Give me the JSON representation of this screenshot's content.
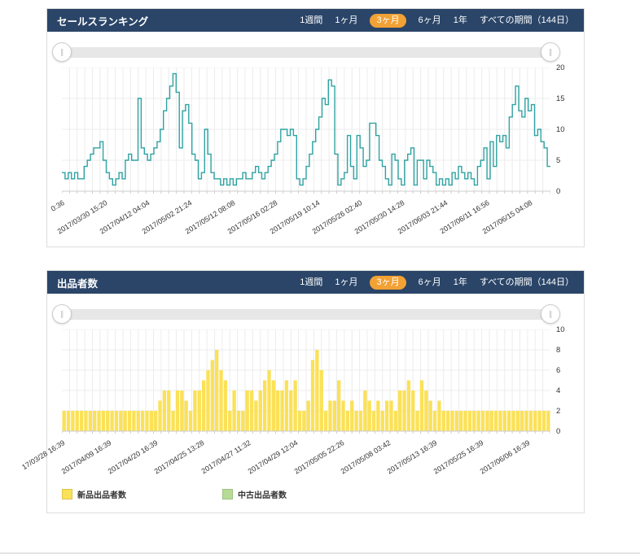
{
  "colors": {
    "header_navy": "#2a4568",
    "accent_orange": "#f2a134",
    "line_teal": "#2fa2a2",
    "bar_yellow": "#fbe158",
    "legend_green": "#b6db94",
    "grid": "#ececec",
    "axis": "#cccccc",
    "slider_track": "#e7e7e7"
  },
  "icons": {
    "slider_handle": "∥"
  },
  "panels": [
    {
      "title": "セールスランキング",
      "period_buttons": [
        "1週間",
        "1ヶ月",
        "3ヶ月",
        "6ヶ月",
        "1年",
        "すべての期間（144日）"
      ],
      "active_period": "3ヶ月"
    },
    {
      "title": "出品者数",
      "period_buttons": [
        "1週間",
        "1ヶ月",
        "3ヶ月",
        "6ヶ月",
        "1年",
        "すべての期間（144日）"
      ],
      "active_period": "3ヶ月"
    }
  ],
  "chart_data": [
    {
      "type": "line",
      "line_style": "step",
      "title": "セールスランキング",
      "color": "#2fa2a2",
      "ylim": [
        0,
        20
      ],
      "y_ticks": [
        0,
        5,
        10,
        15,
        20
      ],
      "grid": true,
      "x_tick_labels": [
        "0:36",
        "2017/03/30 15:20",
        "2017/04/12 04:04",
        "2017/05/02 21:24",
        "2017/05/12 08:08",
        "2017/05/16 02:28",
        "2017/05/19 10:14",
        "2017/05/26 02:40",
        "2017/05/30 14:28",
        "2017/06/03 21:44",
        "2017/06/11 16:56",
        "2017/06/15 04:08"
      ],
      "values": [
        3,
        2,
        3,
        2,
        3,
        2,
        2,
        4,
        5,
        6,
        7,
        7,
        8,
        5,
        3,
        2,
        1,
        2,
        3,
        2,
        5,
        6,
        5,
        5,
        15,
        7,
        6,
        5,
        6,
        7,
        8,
        10,
        13,
        15,
        17,
        19,
        16,
        7,
        13,
        14,
        11,
        6,
        5,
        2,
        3,
        10,
        6,
        3,
        2,
        2,
        1,
        2,
        1,
        2,
        1,
        2,
        2,
        3,
        2,
        2,
        3,
        4,
        3,
        2,
        3,
        4,
        5,
        6,
        8,
        10,
        10,
        9,
        10,
        9,
        2,
        1,
        2,
        4,
        6,
        8,
        10,
        12,
        15,
        14,
        18,
        17,
        6,
        1,
        2,
        3,
        9,
        4,
        2,
        9,
        7,
        4,
        5,
        11,
        11,
        9,
        5,
        4,
        2,
        1,
        6,
        5,
        2,
        1,
        5,
        6,
        7,
        1,
        5,
        5,
        2,
        5,
        4,
        3,
        1,
        2,
        1,
        2,
        1,
        3,
        2,
        4,
        3,
        2,
        3,
        2,
        1,
        4,
        5,
        7,
        2,
        8,
        4,
        9,
        8,
        9,
        7,
        12,
        14,
        17,
        13,
        12,
        15,
        13,
        14,
        9,
        10,
        8,
        7,
        4
      ]
    },
    {
      "type": "bar",
      "title": "出品者数",
      "ylim": [
        0,
        10
      ],
      "y_ticks": [
        0,
        2,
        4,
        6,
        8,
        10
      ],
      "grid": true,
      "x_tick_labels": [
        "17/03/28 16:39",
        "2017/04/09 16:39",
        "2017/04/20 16:39",
        "2017/04/25 13:28",
        "2017/04/27 11:32",
        "2017/04/29 12:04",
        "2017/05/05 22:26",
        "2017/05/08 03:42",
        "2017/05/13 16:39",
        "2017/05/25 16:39",
        "2017/06/06 16:39"
      ],
      "series": [
        {
          "name": "新品出品者数",
          "color": "#fbe158",
          "values": [
            2,
            2,
            2,
            2,
            2,
            2,
            2,
            2,
            2,
            2,
            2,
            2,
            2,
            2,
            2,
            2,
            2,
            2,
            2,
            2,
            2,
            2,
            3,
            4,
            4,
            2,
            4,
            4,
            3,
            2,
            4,
            4,
            5,
            6,
            7,
            8,
            6,
            5,
            2,
            4,
            2,
            2,
            4,
            4,
            3,
            4,
            5,
            6,
            5,
            4,
            4,
            5,
            4,
            5,
            2,
            2,
            3,
            7,
            8,
            6,
            2,
            3,
            3,
            5,
            3,
            2,
            3,
            2,
            2,
            4,
            3,
            2,
            3,
            2,
            3,
            3,
            2,
            4,
            4,
            5,
            4,
            2,
            5,
            4,
            3,
            2,
            3,
            2,
            2,
            2,
            2,
            2,
            2,
            2,
            2,
            2,
            2,
            2,
            2,
            2,
            2,
            2,
            2,
            2,
            2,
            2,
            2,
            2,
            2,
            2,
            2,
            2
          ]
        },
        {
          "name": "中古出品者数",
          "color": "#b6db94",
          "values": []
        }
      ],
      "legend": [
        {
          "label": "新品出品者数",
          "color": "#fbe158"
        },
        {
          "label": "中古出品者数",
          "color": "#b6db94"
        }
      ],
      "legend_position": "bottom-left"
    }
  ]
}
